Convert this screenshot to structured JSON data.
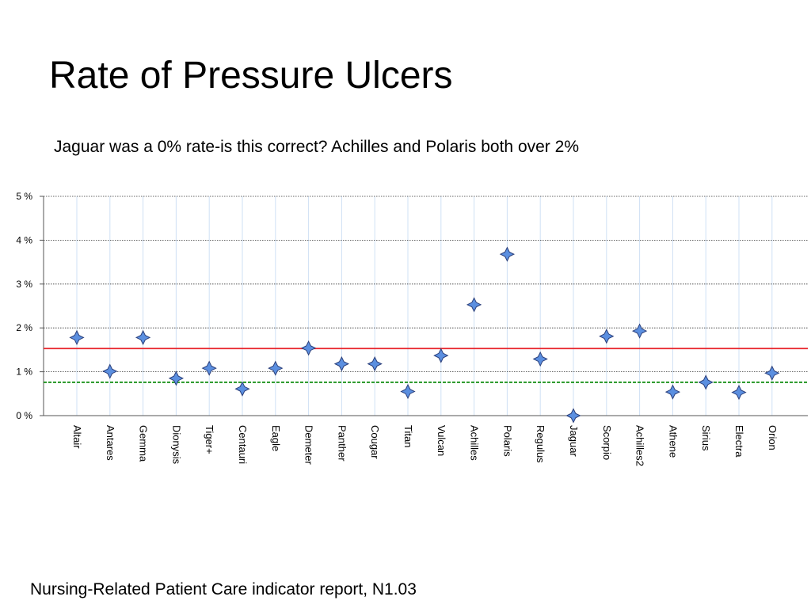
{
  "title": "Rate of Pressure Ulcers",
  "subtitle": "Jaguar was a 0% rate-is this correct? Achilles and Polaris both over 2%",
  "footer": "Nursing-Related Patient Care indicator report, N1.03",
  "chart_data": {
    "type": "scatter",
    "categories": [
      "Altair",
      "Antares",
      "Gemma",
      "Dionysis",
      "Tiger+",
      "Centauri",
      "Eagle",
      "Demeter",
      "Panther",
      "Cougar",
      "Titan",
      "Vulcan",
      "Achilles",
      "Polaris",
      "Regulus",
      "Jaguar",
      "Scorpio",
      "Achilles2",
      "Athene",
      "Sirius",
      "Electra",
      "Orion"
    ],
    "values": [
      1.78,
      1.01,
      1.78,
      0.85,
      1.08,
      0.61,
      1.08,
      1.54,
      1.18,
      1.18,
      0.55,
      1.37,
      2.53,
      3.68,
      1.29,
      0.0,
      1.81,
      1.93,
      0.54,
      0.76,
      0.53,
      0.97
    ],
    "yticks": [
      "0 %",
      "1 %",
      "2 %",
      "3 %",
      "4 %",
      "5 %"
    ],
    "ylim": [
      0,
      5
    ],
    "reference_lines": [
      {
        "value": 1.53,
        "color": "#e8232a",
        "style": "solid"
      },
      {
        "value": 0.76,
        "color": "#0a8a0a",
        "style": "dashed"
      }
    ],
    "marker_color": "#5b8fe0",
    "marker_edge": "#2b3f7a",
    "grid": true
  }
}
